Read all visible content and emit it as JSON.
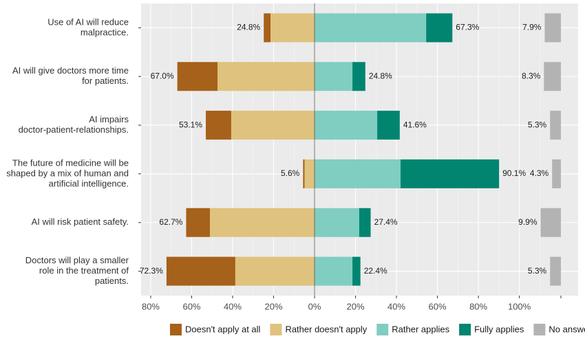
{
  "chart_data": {
    "type": "diverging-bar",
    "categories": [
      [
        "Use of AI will reduce",
        "malpractice."
      ],
      [
        "AI will give doctors more time",
        "for patients."
      ],
      [
        "AI impairs",
        "doctor-patient-relationships."
      ],
      [
        "The future of medicine will be",
        "shaped by a mix of human and",
        "artificial intelligence."
      ],
      [
        "AI will risk patient safety."
      ],
      [
        "Doctors will play a smaller",
        "role in the treatment of",
        "patients."
      ]
    ],
    "series": [
      {
        "name": "Doesn't apply at all",
        "color": "#a6611a",
        "direction": "negative",
        "values": [
          3.3,
          19.6,
          12.4,
          0.7,
          11.6,
          33.6
        ]
      },
      {
        "name": "Rather doesn't apply",
        "color": "#dfc27d",
        "direction": "negative",
        "values": [
          21.5,
          47.4,
          40.7,
          4.9,
          51.1,
          38.7
        ]
      },
      {
        "name": "Rather applies",
        "color": "#80cdc1",
        "direction": "positive",
        "values": [
          54.5,
          18.5,
          30.6,
          42.0,
          21.8,
          18.5
        ]
      },
      {
        "name": "Fully applies",
        "color": "#018571",
        "direction": "positive",
        "values": [
          12.8,
          6.3,
          11.0,
          48.1,
          5.6,
          3.9
        ]
      },
      {
        "name": "No answer",
        "color": "#b3b3b3",
        "direction": "separate",
        "values": [
          7.9,
          8.3,
          5.3,
          4.3,
          9.9,
          5.3
        ],
        "value_labels": [
          "7.9%",
          "8.3%",
          "5.3%",
          "4.3%",
          "9.9%",
          "5.3%"
        ]
      }
    ],
    "negative_totals": [
      24.8,
      67.0,
      53.1,
      5.6,
      62.7,
      72.3
    ],
    "negative_total_labels": [
      "24.8%",
      "67.0%",
      "53.1%",
      "5.6%",
      "62.7%",
      "72.3%"
    ],
    "positive_totals": [
      67.3,
      24.8,
      41.6,
      90.1,
      27.4,
      22.4
    ],
    "positive_total_labels": [
      "67.3%",
      "24.8%",
      "41.6%",
      "90.1%",
      "27.4%",
      "22.4%"
    ],
    "xlim": [
      -84.7,
      128.7
    ],
    "xticks": [
      {
        "value": -80,
        "label": "80%"
      },
      {
        "value": -60,
        "label": "60%"
      },
      {
        "value": -40,
        "label": "40%"
      },
      {
        "value": -20,
        "label": "20%"
      },
      {
        "value": 0,
        "label": "0%"
      },
      {
        "value": 20,
        "label": "20%"
      },
      {
        "value": 40,
        "label": "40%"
      },
      {
        "value": 60,
        "label": "60%"
      },
      {
        "value": 80,
        "label": "80%"
      },
      {
        "value": 100,
        "label": "100%"
      }
    ],
    "grid": true,
    "legend": "bottom"
  }
}
